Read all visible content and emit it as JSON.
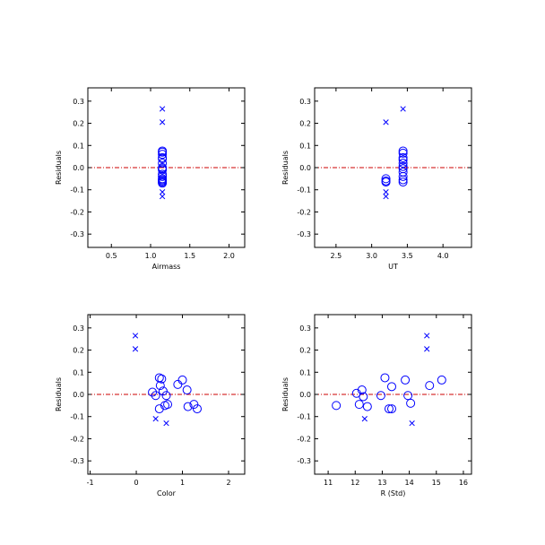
{
  "colors": {
    "marker": "#0000ff",
    "zero_line": "#cc0000",
    "axes": "#000000"
  },
  "chart_data": [
    {
      "type": "scatter",
      "xlabel": "Airmass",
      "ylabel": "Residuals",
      "xlim": [
        0.2,
        2.2
      ],
      "ylim": [
        -0.36,
        0.36
      ],
      "xticks": [
        "0.5",
        "1.0",
        "1.5",
        "2.0"
      ],
      "yticks": [
        "-0.3",
        "-0.2",
        "-0.1",
        "0.0",
        "0.1",
        "0.2",
        "0.3"
      ],
      "zero_line": 0,
      "grid": false,
      "series": [
        {
          "marker": "circle",
          "x": [
            1.15,
            1.15,
            1.15,
            1.15,
            1.15,
            1.15,
            1.15,
            1.15,
            1.15,
            1.15,
            1.15,
            1.15,
            1.15,
            1.15,
            1.15,
            1.15
          ],
          "y": [
            0.075,
            0.07,
            0.06,
            0.045,
            0.04,
            0.02,
            0.0,
            -0.005,
            -0.01,
            -0.03,
            -0.04,
            -0.05,
            -0.055,
            -0.06,
            -0.065,
            -0.07
          ]
        },
        {
          "marker": "cross",
          "x": [
            1.15,
            1.15,
            1.15,
            1.15
          ],
          "y": [
            0.265,
            0.205,
            -0.11,
            -0.13
          ]
        }
      ]
    },
    {
      "type": "scatter",
      "xlabel": "UT",
      "ylabel": "Residuals",
      "xlim": [
        2.2,
        4.4
      ],
      "ylim": [
        -0.36,
        0.36
      ],
      "xticks": [
        "2.5",
        "3.0",
        "3.5",
        "4.0"
      ],
      "yticks": [
        "-0.3",
        "-0.2",
        "-0.1",
        "0.0",
        "0.1",
        "0.2",
        "0.3"
      ],
      "zero_line": 0,
      "grid": false,
      "series": [
        {
          "marker": "circle",
          "x": [
            3.2,
            3.2,
            3.2,
            3.44,
            3.44,
            3.44,
            3.44,
            3.44,
            3.44,
            3.44,
            3.44,
            3.44,
            3.44,
            3.44
          ],
          "y": [
            -0.05,
            -0.06,
            -0.065,
            0.075,
            0.065,
            0.045,
            0.035,
            0.02,
            0.005,
            -0.005,
            -0.02,
            -0.04,
            -0.055,
            -0.065
          ]
        },
        {
          "marker": "cross",
          "x": [
            3.2,
            3.44,
            3.2,
            3.2
          ],
          "y": [
            0.205,
            0.265,
            -0.11,
            -0.13
          ]
        }
      ]
    },
    {
      "type": "scatter",
      "xlabel": "Color",
      "ylabel": "Residuals",
      "xlim": [
        -1.05,
        2.35
      ],
      "ylim": [
        -0.36,
        0.36
      ],
      "xticks": [
        "-1",
        "0",
        "1",
        "2"
      ],
      "yticks": [
        "-0.3",
        "-0.2",
        "-0.1",
        "0.0",
        "0.1",
        "0.2",
        "0.3"
      ],
      "zero_line": 0,
      "grid": false,
      "series": [
        {
          "marker": "circle",
          "x": [
            0.35,
            0.42,
            0.5,
            0.55,
            0.52,
            0.58,
            0.65,
            0.68,
            0.62,
            0.9,
            1.0,
            1.1,
            1.12,
            1.25,
            1.32,
            0.5
          ],
          "y": [
            0.01,
            -0.005,
            0.075,
            0.07,
            0.04,
            0.015,
            -0.005,
            -0.045,
            -0.05,
            0.045,
            0.065,
            0.02,
            -0.055,
            -0.045,
            -0.065,
            -0.065
          ]
        },
        {
          "marker": "cross",
          "x": [
            -0.02,
            -0.02,
            0.42,
            0.65
          ],
          "y": [
            0.265,
            0.205,
            -0.11,
            -0.13
          ]
        }
      ]
    },
    {
      "type": "scatter",
      "xlabel": "R (Std)",
      "ylabel": "Residuals",
      "xlim": [
        10.5,
        16.3
      ],
      "ylim": [
        -0.36,
        0.36
      ],
      "xticks": [
        "11",
        "12",
        "13",
        "14",
        "15",
        "16"
      ],
      "yticks": [
        "-0.3",
        "-0.2",
        "-0.1",
        "0.0",
        "0.1",
        "0.2",
        "0.3"
      ],
      "zero_line": 0,
      "grid": false,
      "series": [
        {
          "marker": "circle",
          "x": [
            11.3,
            12.05,
            12.15,
            12.25,
            12.3,
            12.45,
            12.95,
            13.1,
            13.25,
            13.35,
            13.35,
            13.85,
            13.95,
            14.05,
            14.75,
            15.2
          ],
          "y": [
            -0.05,
            0.005,
            -0.045,
            0.02,
            -0.01,
            -0.055,
            -0.005,
            0.075,
            -0.065,
            0.035,
            -0.065,
            0.065,
            -0.005,
            -0.04,
            0.04,
            0.065
          ]
        },
        {
          "marker": "cross",
          "x": [
            14.65,
            14.65,
            12.35,
            14.1
          ],
          "y": [
            0.265,
            0.205,
            -0.11,
            -0.13
          ]
        }
      ]
    }
  ]
}
